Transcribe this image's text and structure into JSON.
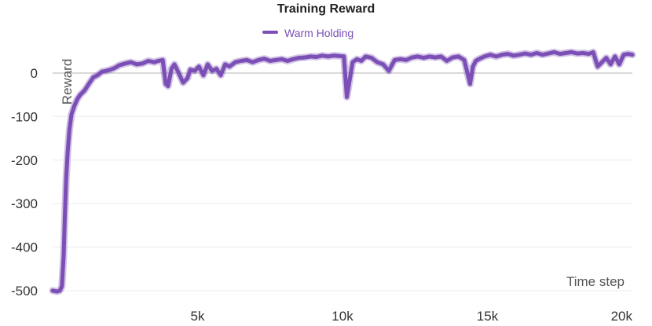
{
  "chart_data": {
    "type": "line",
    "title": "Training Reward",
    "xlabel": "Time step",
    "ylabel": "Reward",
    "xlim": [
      0,
      20000
    ],
    "ylim": [
      -520,
      60
    ],
    "x_ticks": [
      {
        "value": 5000,
        "label": "5k"
      },
      {
        "value": 10000,
        "label": "10k"
      },
      {
        "value": 15000,
        "label": "15k"
      },
      {
        "value": 20000,
        "label": "20k"
      }
    ],
    "y_ticks": [
      {
        "value": 0,
        "label": "0"
      },
      {
        "value": -100,
        "label": "-100"
      },
      {
        "value": -200,
        "label": "-200"
      },
      {
        "value": -300,
        "label": "-300"
      },
      {
        "value": -400,
        "label": "-400"
      },
      {
        "value": -500,
        "label": "-500"
      }
    ],
    "grid": true,
    "legend_position": "top-center",
    "series": [
      {
        "name": "Warm Holding",
        "color": "#7b4fb5",
        "x": [
          0,
          150,
          250,
          320,
          380,
          420,
          470,
          520,
          580,
          650,
          750,
          850,
          950,
          1100,
          1250,
          1400,
          1550,
          1700,
          1850,
          2000,
          2150,
          2300,
          2500,
          2700,
          2900,
          3100,
          3300,
          3500,
          3650,
          3800,
          3900,
          3980,
          4100,
          4200,
          4350,
          4500,
          4650,
          4750,
          4900,
          5050,
          5200,
          5350,
          5500,
          5650,
          5800,
          5950,
          6100,
          6300,
          6500,
          6700,
          6900,
          7100,
          7300,
          7500,
          7700,
          7900,
          8100,
          8300,
          8500,
          8700,
          8900,
          9100,
          9300,
          9500,
          9700,
          9900,
          10050,
          10150,
          10250,
          10350,
          10500,
          10650,
          10800,
          11000,
          11200,
          11400,
          11600,
          11800,
          12000,
          12200,
          12400,
          12600,
          12800,
          13000,
          13200,
          13400,
          13600,
          13800,
          14000,
          14200,
          14400,
          14500,
          14600,
          14700,
          14900,
          15100,
          15300,
          15500,
          15700,
          15900,
          16100,
          16300,
          16500,
          16700,
          16900,
          17100,
          17300,
          17500,
          17700,
          17900,
          18100,
          18300,
          18500,
          18650,
          18800,
          18950,
          19100,
          19250,
          19400,
          19550,
          19700,
          19850,
          20000
        ],
        "values": [
          -500,
          -502,
          -500,
          -490,
          -420,
          -330,
          -240,
          -180,
          -130,
          -95,
          -75,
          -60,
          -50,
          -40,
          -25,
          -10,
          -5,
          3,
          5,
          8,
          12,
          18,
          22,
          25,
          20,
          22,
          28,
          25,
          28,
          30,
          -25,
          -30,
          10,
          20,
          0,
          -22,
          -12,
          8,
          5,
          15,
          -5,
          20,
          5,
          10,
          -5,
          20,
          15,
          25,
          28,
          30,
          25,
          30,
          33,
          28,
          30,
          32,
          28,
          32,
          35,
          36,
          38,
          37,
          40,
          38,
          40,
          39,
          38,
          -55,
          -15,
          25,
          32,
          28,
          38,
          35,
          25,
          20,
          5,
          30,
          32,
          30,
          36,
          38,
          35,
          38,
          36,
          38,
          28,
          36,
          38,
          30,
          -25,
          15,
          28,
          32,
          38,
          42,
          38,
          42,
          44,
          40,
          42,
          45,
          42,
          46,
          42,
          45,
          48,
          44,
          46,
          48,
          45,
          46,
          44,
          48,
          15,
          25,
          35,
          20,
          38,
          20,
          42,
          44,
          42
        ]
      }
    ]
  }
}
